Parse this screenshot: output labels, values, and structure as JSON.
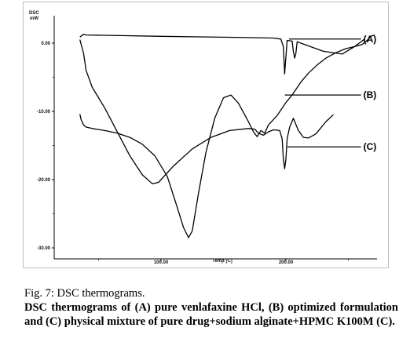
{
  "chart_data": {
    "type": "line",
    "title": "",
    "xlabel": "Temp [C]",
    "ylabel_title": "DSC",
    "ylabel_unit": "mW",
    "ylim": [
      -30.0,
      3.0
    ],
    "xlim": [
      30,
      290
    ],
    "xticks": [
      {
        "value": 100,
        "label": "100.00"
      },
      {
        "value": 200,
        "label": "200.00"
      }
    ],
    "yticks": [
      {
        "value": 0,
        "label": "0.00"
      },
      {
        "value": -10,
        "label": "-10.00"
      },
      {
        "value": -20,
        "label": "-20.00"
      },
      {
        "value": -30,
        "label": "-30.00"
      }
    ],
    "grid": false,
    "series": [
      {
        "name": "(A)",
        "label_x": 257,
        "label_y": 0.6,
        "points": [
          [
            35,
            0.9
          ],
          [
            38,
            1.3
          ],
          [
            40,
            1.2
          ],
          [
            100,
            1.0
          ],
          [
            160,
            0.85
          ],
          [
            190,
            0.75
          ],
          [
            196,
            0.6
          ],
          [
            198,
            -0.5
          ],
          [
            199,
            -4.5
          ],
          [
            200,
            -2
          ],
          [
            201,
            0.4
          ],
          [
            205,
            0.3
          ],
          [
            206,
            -1.2
          ],
          [
            207,
            -2.2
          ],
          [
            208,
            -1.5
          ],
          [
            209,
            0.2
          ],
          [
            215,
            -0.2
          ],
          [
            230,
            -1.2
          ],
          [
            245,
            -1.6
          ],
          [
            255,
            -0.5
          ],
          [
            263,
            0.6
          ]
        ]
      },
      {
        "name": "(B)",
        "label_x": 257,
        "label_y": -7.6,
        "points": [
          [
            35,
            0.5
          ],
          [
            38,
            -1.5
          ],
          [
            40,
            -4
          ],
          [
            45,
            -6.5
          ],
          [
            55,
            -9.5
          ],
          [
            65,
            -13
          ],
          [
            75,
            -16.5
          ],
          [
            85,
            -19.3
          ],
          [
            93,
            -20.6
          ],
          [
            98,
            -20.4
          ],
          [
            110,
            -18
          ],
          [
            125,
            -15.5
          ],
          [
            140,
            -13.8
          ],
          [
            155,
            -12.8
          ],
          [
            170,
            -12.5
          ],
          [
            175,
            -12.6
          ],
          [
            178,
            -13.2
          ],
          [
            182,
            -13.5
          ],
          [
            186,
            -13.0
          ],
          [
            190,
            -12.7
          ],
          [
            195,
            -12.8
          ],
          [
            197,
            -14
          ],
          [
            198,
            -17
          ],
          [
            199,
            -18.4
          ],
          [
            200,
            -17
          ],
          [
            201,
            -14
          ],
          [
            203,
            -12.3
          ],
          [
            206,
            -11.0
          ],
          [
            210,
            -12.8
          ],
          [
            214,
            -13.8
          ],
          [
            218,
            -13.9
          ],
          [
            224,
            -13.3
          ],
          [
            232,
            -11.5
          ],
          [
            238,
            -10.5
          ]
        ]
      },
      {
        "name": "(C)",
        "label_x": 257,
        "label_y": -15.2,
        "points": [
          [
            35,
            -10.4
          ],
          [
            36,
            -11.2
          ],
          [
            38,
            -12.0
          ],
          [
            40,
            -12.3
          ],
          [
            45,
            -12.5
          ],
          [
            55,
            -12.8
          ],
          [
            65,
            -13.2
          ],
          [
            75,
            -13.8
          ],
          [
            85,
            -14.8
          ],
          [
            95,
            -16.5
          ],
          [
            105,
            -19.5
          ],
          [
            112,
            -23.5
          ],
          [
            118,
            -27.0
          ],
          [
            122,
            -28.5
          ],
          [
            125,
            -27.5
          ],
          [
            130,
            -22
          ],
          [
            136,
            -16
          ],
          [
            143,
            -11
          ],
          [
            150,
            -8
          ],
          [
            156,
            -7.6
          ],
          [
            162,
            -8.8
          ],
          [
            170,
            -11.5
          ],
          [
            174,
            -13.0
          ],
          [
            177,
            -13.7
          ],
          [
            180,
            -12.8
          ],
          [
            183,
            -13.2
          ],
          [
            186,
            -12.0
          ],
          [
            189,
            -11.4
          ],
          [
            193,
            -10.6
          ],
          [
            196,
            -9.8
          ],
          [
            200,
            -8.7
          ],
          [
            205,
            -7.6
          ],
          [
            212,
            -5.7
          ],
          [
            218,
            -4.4
          ],
          [
            225,
            -3.2
          ],
          [
            232,
            -2.2
          ],
          [
            240,
            -1.4
          ],
          [
            248,
            -0.8
          ],
          [
            255,
            -0.5
          ],
          [
            261,
            -0.2
          ],
          [
            265,
            0.4
          ],
          [
            268,
            1.0
          ],
          [
            271,
            1.2
          ]
        ]
      }
    ]
  },
  "caption": {
    "title": "Fig. 7: DSC thermograms.",
    "text": "DSC thermograms of (A) pure venlafaxine HCl, (B) optimized formulation and (C) physical mixture of pure drug+sodium alginate+HPMC K100M (C)."
  }
}
